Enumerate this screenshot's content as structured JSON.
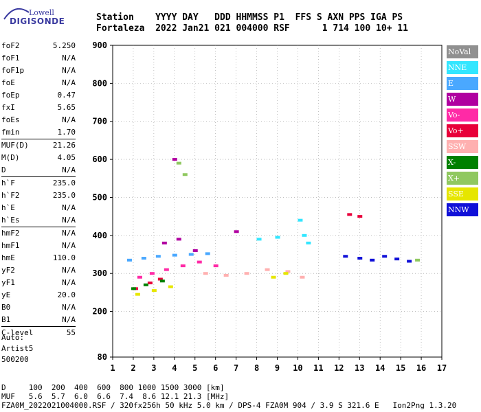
{
  "logo": {
    "top": "Lowell",
    "bottom": "DIGISONDE"
  },
  "header": {
    "line1": "Station    YYYY DAY   DDD HHMMSS P1  FFS S AXN PPS IGA PS",
    "line2": "Fortaleza  2022 Jan21 021 004000 RSF      1 714 100 10+ 11"
  },
  "params_group1": [
    {
      "label": "foF2",
      "value": "5.250"
    },
    {
      "label": "foF1",
      "value": "N/A"
    },
    {
      "label": "foF1p",
      "value": "N/A"
    },
    {
      "label": "foE",
      "value": "N/A"
    },
    {
      "label": "foEp",
      "value": "0.47"
    },
    {
      "label": "fxI",
      "value": "5.65"
    },
    {
      "label": "foEs",
      "value": "N/A"
    },
    {
      "label": "fmin",
      "value": "1.70"
    }
  ],
  "params_group2": [
    {
      "label": "MUF(D)",
      "value": "21.26"
    },
    {
      "label": "M(D)",
      "value": "4.05"
    },
    {
      "label": "D",
      "value": "N/A"
    }
  ],
  "params_group3": [
    {
      "label": "h`F",
      "value": "235.0"
    },
    {
      "label": "h`F2",
      "value": "235.0"
    },
    {
      "label": "h`E",
      "value": "N/A"
    },
    {
      "label": "h`Es",
      "value": "N/A"
    }
  ],
  "params_group4": [
    {
      "label": "hmF2",
      "value": "N/A"
    },
    {
      "label": "hmF1",
      "value": "N/A"
    },
    {
      "label": "hmE",
      "value": "110.0"
    },
    {
      "label": "yF2",
      "value": "N/A"
    },
    {
      "label": "yF1",
      "value": "N/A"
    },
    {
      "label": "yE",
      "value": "20.0"
    },
    {
      "label": "B0",
      "value": "N/A"
    },
    {
      "label": "B1",
      "value": "N/A"
    }
  ],
  "params_group5": [
    {
      "label": "C-level",
      "value": "55"
    }
  ],
  "auto": {
    "line1": "Auto:",
    "line2": "Artist5",
    "line3": "500200"
  },
  "legend": [
    {
      "label": "NoVal",
      "color": "#909090"
    },
    {
      "label": "NNE",
      "color": "#33e6ff"
    },
    {
      "label": "E",
      "color": "#4aa8ff"
    },
    {
      "label": "W",
      "color": "#b000a0"
    },
    {
      "label": "Vo-",
      "color": "#ff2aa6"
    },
    {
      "label": "Vo+",
      "color": "#e8003a"
    },
    {
      "label": "SSW",
      "color": "#ffb0b0"
    },
    {
      "label": "X-",
      "color": "#008000"
    },
    {
      "label": "X+",
      "color": "#90c860"
    },
    {
      "label": "SSE",
      "color": "#e6e600"
    },
    {
      "label": "NNW",
      "color": "#1010d8"
    }
  ],
  "footer": {
    "line1": "D     100  200  400  600  800 1000 1500 3000 [km]",
    "line2": "MUF   5.6  5.7  6.0  6.6  7.4  8.6 12.1 21.3 [MHz]",
    "line3": "FZA0M_2022021004000.RSF / 320fx256h 50 kHz 5.0 km / DPS-4 FZA0M 904 / 3.9 S 321.6 E   Ion2Png 1.3.20"
  },
  "chart_data": {
    "type": "scatter",
    "xlim": [
      1,
      17
    ],
    "ylim": [
      80,
      900
    ],
    "x_ticks": [
      1,
      2,
      3,
      4,
      5,
      6,
      7,
      8,
      9,
      10,
      11,
      12,
      13,
      14,
      15,
      16,
      17
    ],
    "y_ticks": [
      80,
      200,
      300,
      400,
      500,
      600,
      700,
      800,
      900
    ],
    "series": [
      {
        "name": "E",
        "points": [
          [
            1.8,
            335
          ],
          [
            2.5,
            340
          ],
          [
            3.2,
            345
          ],
          [
            4.0,
            348
          ],
          [
            4.8,
            350
          ],
          [
            5.6,
            352
          ]
        ]
      },
      {
        "name": "NNE",
        "points": [
          [
            10.1,
            440
          ],
          [
            10.3,
            400
          ],
          [
            10.5,
            380
          ],
          [
            8.1,
            390
          ],
          [
            9.0,
            395
          ]
        ]
      },
      {
        "name": "W",
        "points": [
          [
            3.5,
            380
          ],
          [
            4.2,
            390
          ],
          [
            5.0,
            360
          ],
          [
            7.0,
            410
          ],
          [
            4.0,
            600
          ]
        ]
      },
      {
        "name": "Vo-",
        "points": [
          [
            2.3,
            290
          ],
          [
            2.9,
            300
          ],
          [
            3.6,
            310
          ],
          [
            4.4,
            320
          ],
          [
            5.2,
            330
          ],
          [
            6.0,
            320
          ]
        ]
      },
      {
        "name": "Vo+",
        "points": [
          [
            2.1,
            260
          ],
          [
            2.8,
            275
          ],
          [
            3.3,
            285
          ],
          [
            12.5,
            455
          ],
          [
            13.0,
            450
          ]
        ]
      },
      {
        "name": "SSW",
        "points": [
          [
            5.5,
            300
          ],
          [
            6.5,
            295
          ],
          [
            7.5,
            300
          ],
          [
            8.5,
            310
          ],
          [
            9.5,
            305
          ],
          [
            10.2,
            290
          ]
        ]
      },
      {
        "name": "X-",
        "points": [
          [
            2.0,
            260
          ],
          [
            2.6,
            270
          ],
          [
            3.4,
            280
          ]
        ]
      },
      {
        "name": "X+",
        "points": [
          [
            4.2,
            590
          ],
          [
            4.5,
            560
          ],
          [
            15.8,
            335
          ]
        ]
      },
      {
        "name": "SSE",
        "points": [
          [
            2.2,
            245
          ],
          [
            3.0,
            255
          ],
          [
            3.8,
            265
          ],
          [
            8.8,
            290
          ],
          [
            9.4,
            300
          ]
        ]
      },
      {
        "name": "NNW",
        "points": [
          [
            12.3,
            345
          ],
          [
            13.0,
            340
          ],
          [
            13.6,
            335
          ],
          [
            14.2,
            345
          ],
          [
            14.8,
            338
          ],
          [
            15.4,
            332
          ]
        ]
      }
    ]
  }
}
